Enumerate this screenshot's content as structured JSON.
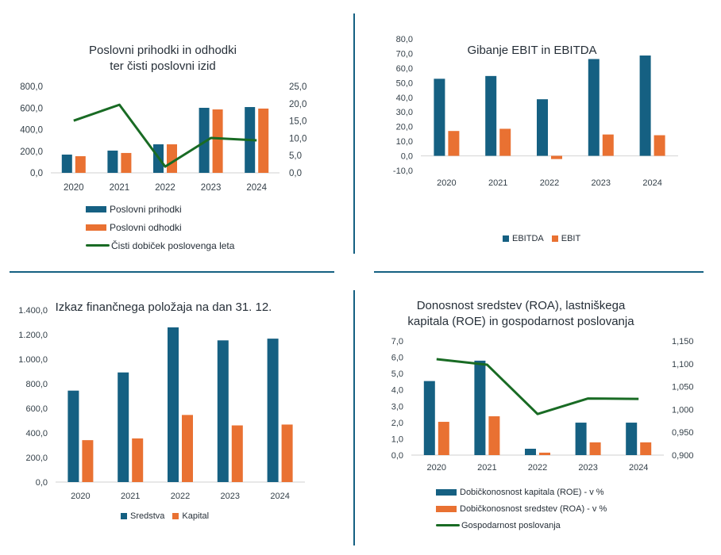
{
  "colors": {
    "blue": "#156082",
    "orange": "#E97132",
    "green": "#196B24",
    "divider": "#156082",
    "axis": "#d9d9d9"
  },
  "chart_data": [
    {
      "id": "revenues",
      "type": "bar",
      "title_lines": [
        "Poslovni prihodki in odhodki",
        "ter čisti poslovni izid"
      ],
      "categories": [
        "2020",
        "2021",
        "2022",
        "2023",
        "2024"
      ],
      "series": [
        {
          "name": "Poslovni prihodki",
          "type": "bar",
          "axis": "left",
          "color": "#156082",
          "values": [
            169,
            206,
            264,
            602,
            609
          ]
        },
        {
          "name": "Poslovni odhodki",
          "type": "bar",
          "axis": "left",
          "color": "#E97132",
          "values": [
            154,
            184,
            264,
            587,
            595
          ]
        },
        {
          "name": "Čisti dobiček poslovenga leta",
          "type": "line",
          "axis": "right",
          "color": "#196B24",
          "values": [
            15.1,
            19.7,
            1.8,
            10.1,
            9.4
          ]
        }
      ],
      "y_left": {
        "min": 0,
        "max": 800,
        "ticks": [
          "0,0",
          "200,0",
          "400,0",
          "600,0",
          "800,0"
        ]
      },
      "y_right": {
        "min": 0,
        "max": 25,
        "ticks": [
          "0,0",
          "5,0",
          "10,0",
          "15,0",
          "20,0",
          "25,0"
        ]
      },
      "legend_position": "bottom",
      "grid": false
    },
    {
      "id": "ebit",
      "type": "bar",
      "title_lines": [
        "Gibanje EBIT in EBITDA"
      ],
      "categories": [
        "2020",
        "2021",
        "2022",
        "2023",
        "2024"
      ],
      "series": [
        {
          "name": "EBITDA",
          "type": "bar",
          "axis": "left",
          "color": "#156082",
          "values": [
            52.7,
            54.6,
            38.7,
            66.2,
            68.6
          ]
        },
        {
          "name": "EBIT",
          "type": "bar",
          "axis": "left",
          "color": "#E97132",
          "values": [
            17.0,
            18.5,
            -2.2,
            14.6,
            14.1
          ]
        }
      ],
      "y_left": {
        "min": -10,
        "max": 80,
        "ticks": [
          "-10,0",
          "0,0",
          "10,0",
          "20,0",
          "30,0",
          "40,0",
          "50,0",
          "60,0",
          "70,0",
          "80,0"
        ]
      },
      "legend_position": "bottom",
      "grid": false
    },
    {
      "id": "balance",
      "type": "bar",
      "title_lines": [
        "Izkaz finančnega položaja na dan 31. 12."
      ],
      "categories": [
        "2020",
        "2021",
        "2022",
        "2023",
        "2024"
      ],
      "series": [
        {
          "name": "Sredstva",
          "type": "bar",
          "axis": "left",
          "color": "#156082",
          "values": [
            744,
            892,
            1259,
            1153,
            1167
          ]
        },
        {
          "name": "Kapital",
          "type": "bar",
          "axis": "left",
          "color": "#E97132",
          "values": [
            341,
            355,
            546,
            461,
            468
          ]
        }
      ],
      "y_left": {
        "min": 0,
        "max": 1400,
        "ticks": [
          "0,0",
          "200,0",
          "400,0",
          "600,0",
          "800,0",
          "1.000,0",
          "1.200,0",
          "1.400,0"
        ]
      },
      "legend_position": "bottom",
      "grid": false
    },
    {
      "id": "returns",
      "type": "bar",
      "title_lines": [
        "Donosnost sredstev (ROA), lastniškega",
        "kapitala (ROE) in gospodarnost poslovanja"
      ],
      "categories": [
        "2020",
        "2021",
        "2022",
        "2023",
        "2024"
      ],
      "series": [
        {
          "name": "Dobičkonosnost kapitala (ROE) - v %",
          "type": "bar",
          "axis": "left",
          "color": "#156082",
          "values": [
            4.54,
            5.79,
            0.39,
            1.99,
            1.99
          ]
        },
        {
          "name": "Dobičkonosnost sredstev (ROA) - v %",
          "type": "bar",
          "axis": "left",
          "color": "#E97132",
          "values": [
            2.04,
            2.38,
            0.15,
            0.78,
            0.78
          ]
        },
        {
          "name": "Gospodarnost poslovanja",
          "type": "line",
          "axis": "right",
          "color": "#196B24",
          "values": [
            1.11,
            1.098,
            0.99,
            1.024,
            1.023
          ]
        }
      ],
      "y_left": {
        "min": 0,
        "max": 7,
        "ticks": [
          "0,0",
          "1,0",
          "2,0",
          "3,0",
          "4,0",
          "5,0",
          "6,0",
          "7,0"
        ]
      },
      "y_right": {
        "min": 0.9,
        "max": 1.15,
        "ticks": [
          "0,900",
          "0,950",
          "1,000",
          "1,050",
          "1,100",
          "1,150"
        ]
      },
      "legend_position": "bottom",
      "grid": false
    }
  ]
}
